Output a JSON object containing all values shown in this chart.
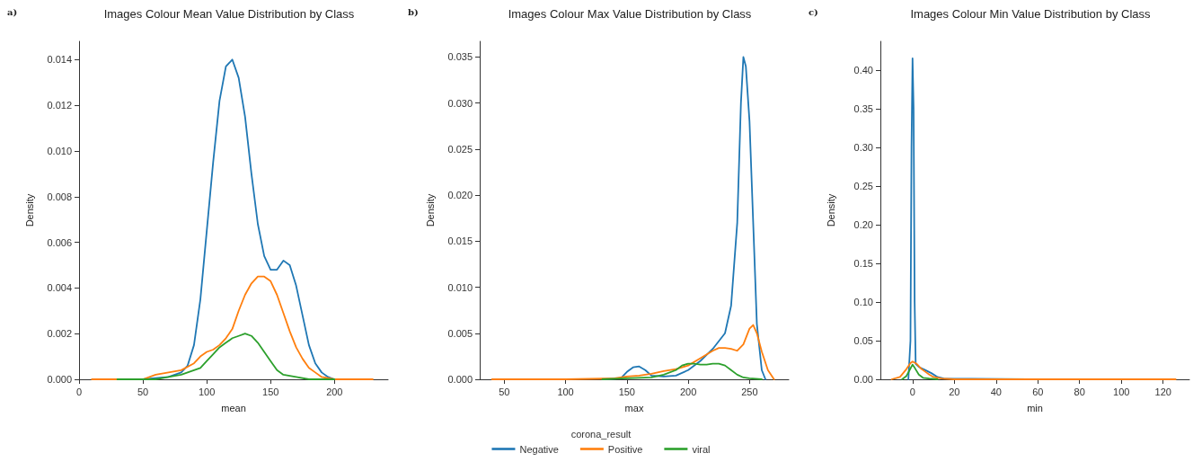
{
  "chart_data": [
    {
      "type": "line",
      "title": "Images Colour Mean Value Distribution by Class",
      "annotations": [
        "a)"
      ],
      "xlabel": "mean",
      "ylabel": "Density",
      "xlim": [
        0,
        242
      ],
      "xticks": [
        0,
        50,
        100,
        150,
        200
      ],
      "ylim": [
        0,
        0.0148
      ],
      "yticks": [
        {
          "value": 0,
          "label": "0.000"
        },
        {
          "value": 0.002,
          "label": "0.002"
        },
        {
          "value": 0.004,
          "label": "0.004"
        },
        {
          "value": 0.006,
          "label": "0.006"
        },
        {
          "value": 0.008,
          "label": "0.008"
        },
        {
          "value": 0.01,
          "label": "0.010"
        },
        {
          "value": 0.012,
          "label": "0.012"
        },
        {
          "value": 0.014,
          "label": "0.014"
        }
      ],
      "series": [
        {
          "color": "#1f77b4",
          "x": [
            15,
            50,
            70,
            80,
            85,
            90,
            95,
            100,
            105,
            110,
            115,
            120,
            125,
            130,
            135,
            140,
            145,
            150,
            155,
            160,
            165,
            170,
            175,
            180,
            185,
            190,
            195,
            200,
            210
          ],
          "values": [
            0,
            0,
            0.0001,
            0.0003,
            0.0006,
            0.0015,
            0.0035,
            0.0065,
            0.0095,
            0.0122,
            0.0137,
            0.014,
            0.0132,
            0.0115,
            0.009,
            0.0068,
            0.0054,
            0.0048,
            0.0048,
            0.0052,
            0.005,
            0.0041,
            0.0028,
            0.0015,
            0.0007,
            0.0003,
            0.0001,
            0,
            0
          ]
        },
        {
          "color": "#ff7f0e",
          "x": [
            10,
            50,
            60,
            70,
            80,
            90,
            95,
            100,
            105,
            110,
            115,
            120,
            125,
            130,
            135,
            140,
            145,
            150,
            155,
            160,
            165,
            170,
            175,
            180,
            185,
            190,
            200,
            230
          ],
          "values": [
            0,
            0,
            0.0002,
            0.0003,
            0.0004,
            0.0007,
            0.001,
            0.0012,
            0.0013,
            0.0015,
            0.0018,
            0.0022,
            0.003,
            0.0037,
            0.0042,
            0.0045,
            0.0045,
            0.0043,
            0.0037,
            0.0029,
            0.0021,
            0.0014,
            0.0009,
            0.0005,
            0.0003,
            0.0001,
            0,
            0
          ]
        },
        {
          "color": "#2ca02c",
          "x": [
            30,
            60,
            70,
            80,
            90,
            95,
            100,
            105,
            110,
            115,
            120,
            125,
            130,
            135,
            140,
            145,
            150,
            155,
            160,
            170,
            180,
            200
          ],
          "values": [
            0,
            0,
            0.0001,
            0.0002,
            0.0004,
            0.0005,
            0.0008,
            0.0011,
            0.0014,
            0.0016,
            0.0018,
            0.0019,
            0.002,
            0.0019,
            0.0016,
            0.0012,
            0.0008,
            0.0004,
            0.0002,
            0.0001,
            0,
            0
          ]
        }
      ]
    },
    {
      "type": "line",
      "title": "Images Colour Max Value Distribution by Class",
      "annotations": [
        "b)"
      ],
      "xlabel": "max",
      "ylabel": "Density",
      "legend": "bottom",
      "legend_title": "corona_result",
      "xlim": [
        30,
        282
      ],
      "xticks": [
        50,
        100,
        150,
        200,
        250
      ],
      "ylim": [
        0,
        0.0367
      ],
      "yticks": [
        {
          "value": 0,
          "label": "0.000"
        },
        {
          "value": 0.005,
          "label": "0.005"
        },
        {
          "value": 0.01,
          "label": "0.010"
        },
        {
          "value": 0.015,
          "label": "0.015"
        },
        {
          "value": 0.02,
          "label": "0.020"
        },
        {
          "value": 0.025,
          "label": "0.025"
        },
        {
          "value": 0.03,
          "label": "0.030"
        },
        {
          "value": 0.035,
          "label": "0.035"
        }
      ],
      "series": [
        {
          "name": "Negative",
          "color": "#1f77b4",
          "x": [
            130,
            145,
            150,
            155,
            160,
            165,
            170,
            180,
            190,
            200,
            210,
            220,
            230,
            235,
            240,
            243,
            245,
            247,
            250,
            253,
            256,
            260,
            263
          ],
          "values": [
            0,
            0.0001,
            0.0008,
            0.0013,
            0.0014,
            0.001,
            0.0004,
            0.0003,
            0.0004,
            0.001,
            0.002,
            0.0033,
            0.005,
            0.008,
            0.017,
            0.03,
            0.035,
            0.034,
            0.028,
            0.017,
            0.006,
            0.001,
            0
          ]
        },
        {
          "name": "Positive",
          "color": "#ff7f0e",
          "x": [
            40,
            100,
            140,
            150,
            160,
            170,
            180,
            190,
            200,
            210,
            220,
            225,
            230,
            235,
            240,
            245,
            250,
            253,
            256,
            260,
            265,
            270
          ],
          "values": [
            0,
            0,
            0.0001,
            0.0003,
            0.0004,
            0.0006,
            0.0009,
            0.0011,
            0.0015,
            0.0023,
            0.0031,
            0.0034,
            0.0034,
            0.0033,
            0.0031,
            0.0038,
            0.0055,
            0.0059,
            0.005,
            0.003,
            0.001,
            0
          ]
        },
        {
          "name": "viral",
          "color": "#2ca02c",
          "x": [
            130,
            150,
            170,
            180,
            190,
            195,
            200,
            205,
            210,
            215,
            220,
            225,
            230,
            235,
            240,
            245,
            250,
            260
          ],
          "values": [
            0,
            0.0001,
            0.0002,
            0.0005,
            0.001,
            0.0015,
            0.0017,
            0.0017,
            0.0016,
            0.0016,
            0.0017,
            0.0017,
            0.0015,
            0.001,
            0.0005,
            0.0002,
            0.0001,
            0
          ]
        }
      ]
    },
    {
      "type": "line",
      "title": "Images Colour Min Value Distribution by Class",
      "annotations": [
        "c)"
      ],
      "xlabel": "min",
      "ylabel": "Density",
      "xlim": [
        -15.4,
        132.6
      ],
      "xticks": [
        0,
        20,
        40,
        60,
        80,
        100,
        120
      ],
      "ylim": [
        0,
        0.437
      ],
      "yticks": [
        {
          "value": 0,
          "label": "0.00"
        },
        {
          "value": 0.05,
          "label": "0.05"
        },
        {
          "value": 0.1,
          "label": "0.10"
        },
        {
          "value": 0.15,
          "label": "0.15"
        },
        {
          "value": 0.2,
          "label": "0.20"
        },
        {
          "value": 0.25,
          "label": "0.25"
        },
        {
          "value": 0.3,
          "label": "0.30"
        },
        {
          "value": 0.35,
          "label": "0.35"
        },
        {
          "value": 0.4,
          "label": "0.40"
        }
      ],
      "series": [
        {
          "color": "#1f77b4",
          "x": [
            -2,
            -1,
            -0.5,
            0,
            0.5,
            1,
            1.5,
            3,
            6,
            9,
            12,
            15,
            55
          ],
          "values": [
            0,
            0.05,
            0.3,
            0.415,
            0.35,
            0.1,
            0.02,
            0.016,
            0.012,
            0.008,
            0.003,
            0.001,
            0
          ]
        },
        {
          "color": "#ff7f0e",
          "x": [
            -10,
            -6,
            -3,
            -1,
            0,
            2,
            4,
            6,
            8,
            10,
            14,
            20,
            55,
            126
          ],
          "values": [
            0,
            0.003,
            0.013,
            0.021,
            0.023,
            0.02,
            0.014,
            0.01,
            0.006,
            0.003,
            0.001,
            0,
            0,
            0
          ]
        },
        {
          "color": "#2ca02c",
          "x": [
            -5,
            -3,
            -1,
            0,
            1,
            3,
            5,
            8,
            12
          ],
          "values": [
            0,
            0.004,
            0.014,
            0.019,
            0.015,
            0.006,
            0.002,
            0.001,
            0
          ]
        }
      ]
    }
  ]
}
